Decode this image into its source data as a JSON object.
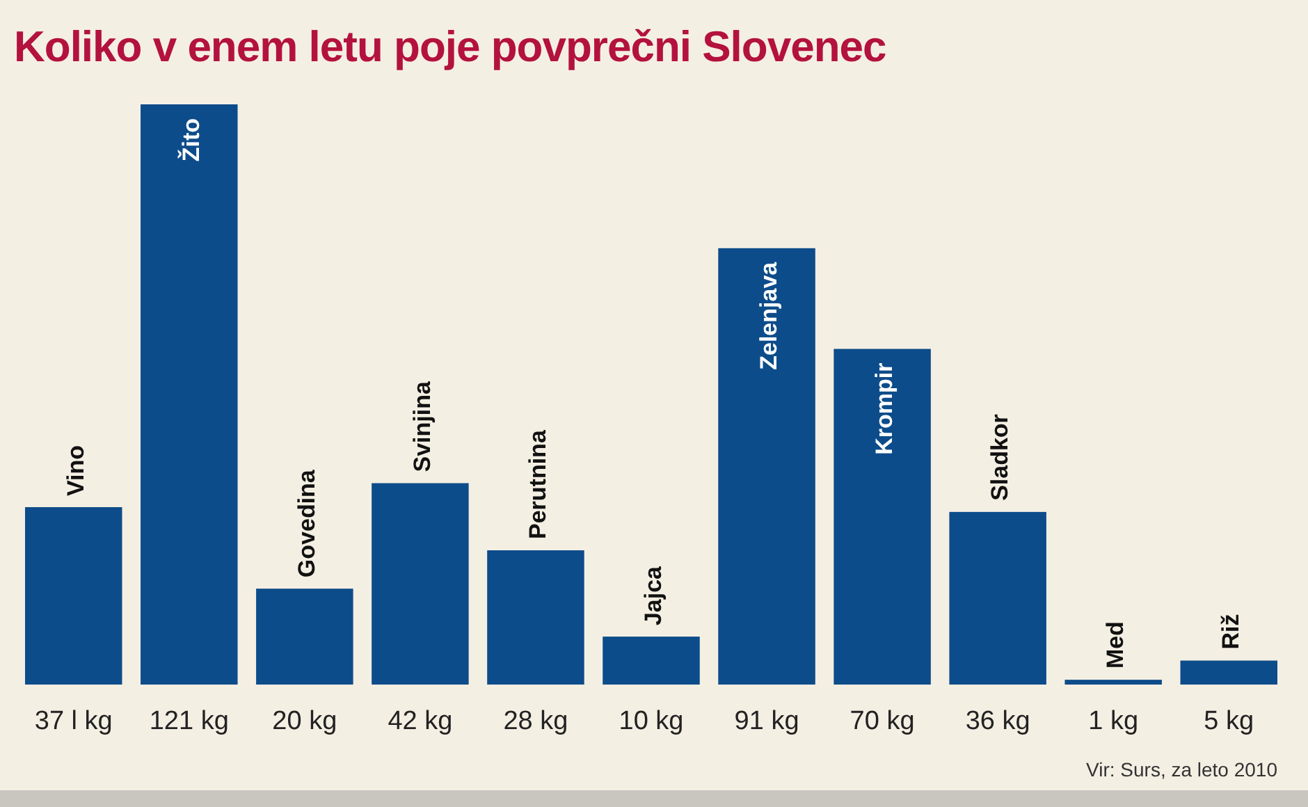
{
  "chart_data": {
    "type": "bar",
    "title": "Koliko v enem letu poje povprečni Slovenec",
    "categories": [
      "Vino",
      "Žito",
      "Govedina",
      "Svinjina",
      "Perutnina",
      "Jajca",
      "Zelenjava",
      "Krompir",
      "Sladkor",
      "Med",
      "Riž"
    ],
    "values": [
      37,
      121,
      20,
      42,
      28,
      10,
      91,
      70,
      36,
      1,
      5
    ],
    "value_labels": [
      "37 l kg",
      "121 kg",
      "20 kg",
      "42 kg",
      "28 kg",
      "10 kg",
      "91 kg",
      "70 kg",
      "36 kg",
      "1 kg",
      "5 kg"
    ],
    "color": "#0d4c8a",
    "annotations": [
      "Vir: Surs, za leto 2010"
    ]
  }
}
